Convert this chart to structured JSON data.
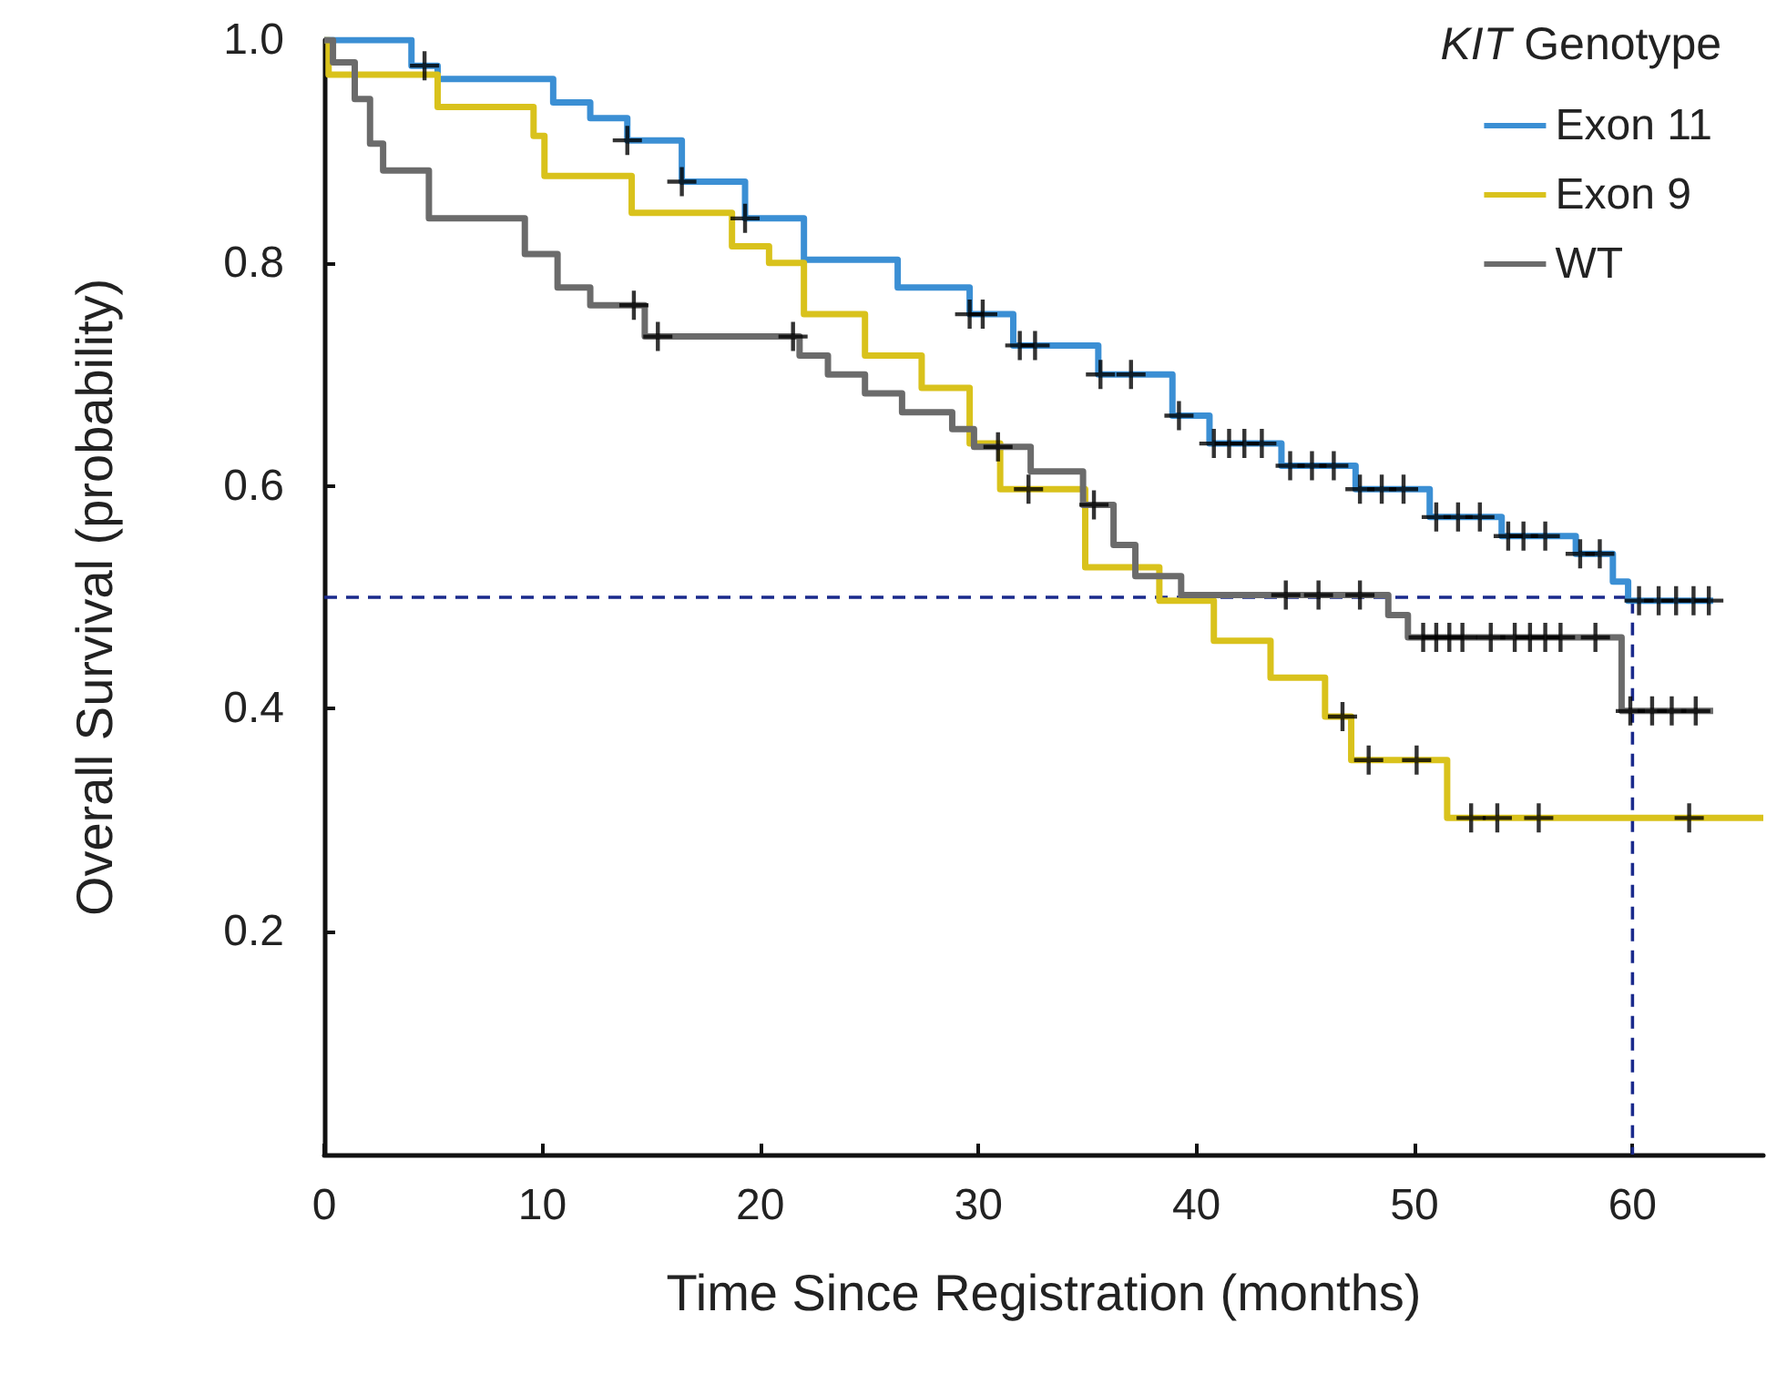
{
  "chart_data": {
    "type": "step",
    "xlabel": "Time Since Registration (months)",
    "ylabel": "Overall Survival (probability)",
    "legend_title": "KIT Genotype",
    "legend": "top right",
    "grid": false,
    "marker": "none",
    "xlim": [
      0,
      66
    ],
    "ylim": [
      0,
      1
    ],
    "xticks": [
      0,
      10,
      20,
      30,
      40,
      50,
      60
    ],
    "yticks": [
      0.2,
      0.4,
      0.6,
      0.8,
      {
        "value": 1,
        "label": "1.0"
      }
    ],
    "series": [
      {
        "name": "Exon 11",
        "color": "#3b8fd4",
        "x": [
          0,
          4,
          5.2,
          10.5,
          12.2,
          13.9,
          16.4,
          19.3,
          22,
          26.3,
          29.6,
          31.6,
          35.5,
          38.9,
          40.6,
          43.9,
          47.3,
          50.7,
          54,
          57.4,
          59.1,
          59.8,
          63.7
        ],
        "values": [
          1,
          0.977,
          0.965,
          0.944,
          0.93,
          0.91,
          0.873,
          0.84,
          0.803,
          0.778,
          0.754,
          0.726,
          0.7,
          0.663,
          0.638,
          0.618,
          0.597,
          0.572,
          0.555,
          0.539,
          0.514,
          0.497,
          0.497
        ]
      },
      {
        "name": "Exon 9",
        "color": "#d9c21c",
        "x": [
          0,
          0.2,
          5.2,
          9.6,
          10.1,
          14.1,
          18.7,
          20.4,
          22,
          24.8,
          27.4,
          29.6,
          31,
          34.9,
          38.3,
          40.8,
          43.4,
          45.9,
          47.1,
          51.5,
          66
        ],
        "values": [
          1,
          0.969,
          0.94,
          0.914,
          0.878,
          0.845,
          0.815,
          0.8,
          0.754,
          0.717,
          0.688,
          0.638,
          0.597,
          0.527,
          0.497,
          0.461,
          0.428,
          0.393,
          0.354,
          0.302,
          0.302
        ]
      },
      {
        "name": "WT",
        "color": "#6b6b6b",
        "x": [
          0,
          0.4,
          1.4,
          2.1,
          2.7,
          4.8,
          9.2,
          10.7,
          12.2,
          14.7,
          21.8,
          23.1,
          24.8,
          26.5,
          28.8,
          29.8,
          32.4,
          34.8,
          36.2,
          37.2,
          39.3,
          48.8,
          49.7,
          59.5,
          63.7
        ],
        "values": [
          1,
          0.98,
          0.947,
          0.907,
          0.883,
          0.84,
          0.808,
          0.778,
          0.762,
          0.734,
          0.717,
          0.7,
          0.683,
          0.666,
          0.651,
          0.635,
          0.613,
          0.583,
          0.547,
          0.519,
          0.502,
          0.484,
          0.464,
          0.398,
          0.398
        ]
      },
      {
        "type": "scatter",
        "marker": "cross",
        "color": "#000000",
        "x": [
          4.6,
          13.9,
          16.4,
          19.3,
          29.6,
          30.2,
          31.9,
          32.6,
          35.6,
          37,
          39.2,
          40.8,
          41.5,
          42.2,
          43,
          44.3,
          45.3,
          46.3,
          47.5,
          48.5,
          49.5,
          51,
          52,
          53,
          54.3,
          55,
          56,
          57.6,
          58.5,
          60.3,
          61.2,
          62,
          62.8,
          63.5,
          32.3,
          46.7,
          47.9,
          50.1,
          52.6,
          53.8,
          55.7,
          62.6,
          14.2,
          15.3,
          21.5,
          30.9,
          35.3,
          44.1,
          45.6,
          47.5,
          50.4,
          51,
          51.6,
          52.2,
          53.5,
          54.6,
          55.3,
          56,
          56.7,
          58.3,
          59.9,
          60.9,
          61.8,
          62.9
        ],
        "values": [
          0.977,
          0.91,
          0.873,
          0.84,
          0.754,
          0.754,
          0.726,
          0.726,
          0.7,
          0.7,
          0.663,
          0.638,
          0.638,
          0.638,
          0.638,
          0.618,
          0.618,
          0.618,
          0.597,
          0.597,
          0.597,
          0.572,
          0.572,
          0.572,
          0.555,
          0.555,
          0.555,
          0.539,
          0.539,
          0.497,
          0.497,
          0.497,
          0.497,
          0.497,
          0.597,
          0.393,
          0.354,
          0.354,
          0.302,
          0.302,
          0.302,
          0.302,
          0.762,
          0.734,
          0.734,
          0.635,
          0.583,
          0.502,
          0.502,
          0.502,
          0.464,
          0.464,
          0.464,
          0.464,
          0.464,
          0.464,
          0.464,
          0.464,
          0.464,
          0.464,
          0.398,
          0.398,
          0.398,
          0.398
        ]
      },
      {
        "type": "line",
        "line_style": "dashed",
        "color": "#1a2a8c",
        "x": [
          0,
          60,
          60
        ],
        "values": [
          0.5,
          0.5,
          0
        ]
      }
    ]
  }
}
